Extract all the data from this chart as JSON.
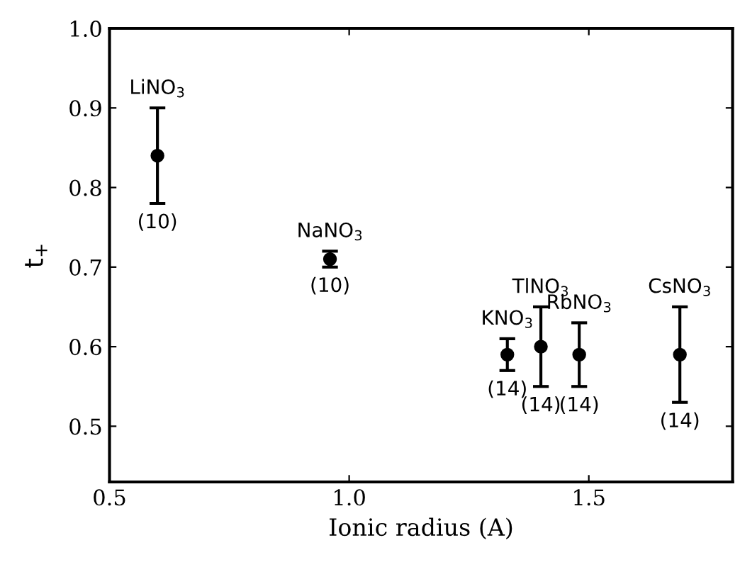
{
  "chart_data": {
    "type": "scatter",
    "xlabel": "Ionic radius (A)",
    "ylabel": "t$_{+}$",
    "x": [
      0.6,
      0.96,
      1.33,
      1.4,
      1.48,
      1.69
    ],
    "values": [
      0.84,
      0.71,
      0.59,
      0.6,
      0.59,
      0.59
    ],
    "errors": [
      [
        0.78,
        0.9
      ],
      0.01,
      [
        0.57,
        0.61
      ],
      [
        0.55,
        0.65
      ],
      [
        0.55,
        0.63
      ],
      [
        0.53,
        0.65
      ]
    ],
    "color": "#000000",
    "marker": "circle",
    "xlim": [
      0.5,
      1.8
    ],
    "xticks": [
      0.5,
      {
        "value": 1.0,
        "label": "1.0"
      },
      1.5
    ],
    "ylim": [
      0.43,
      1.0
    ],
    "yticks": [
      0.5,
      0.6,
      0.7,
      0.8,
      0.9,
      {
        "value": 1.0,
        "label": "1.0"
      }
    ],
    "grid": false,
    "annotations": [
      {
        "text": "LiNO$_{3}$",
        "x": 0.6,
        "y": 0.84
      },
      {
        "text": "(10)",
        "x": 0.6,
        "y": 0.84
      },
      {
        "text": "NaNO$_{3}$",
        "x": 0.96,
        "y": 0.71
      },
      {
        "text": "(10)",
        "x": 0.96,
        "y": 0.71
      },
      {
        "text": "KNO$_{3}$",
        "x": 1.33,
        "y": 0.59
      },
      {
        "text": "(14)",
        "x": 1.33,
        "y": 0.59
      },
      {
        "text": "TlNO$_{3}$",
        "x": 1.4,
        "y": 0.6
      },
      {
        "text": "(14)",
        "x": 1.4,
        "y": 0.6
      },
      {
        "text": "RbNO$_{3}$",
        "x": 1.48,
        "y": 0.59
      },
      {
        "text": "(14)",
        "x": 1.48,
        "y": 0.59
      },
      {
        "text": "CsNO$_{3}$",
        "x": 1.69,
        "y": 0.59
      },
      {
        "text": "(14)",
        "x": 1.69,
        "y": 0.59
      }
    ]
  }
}
